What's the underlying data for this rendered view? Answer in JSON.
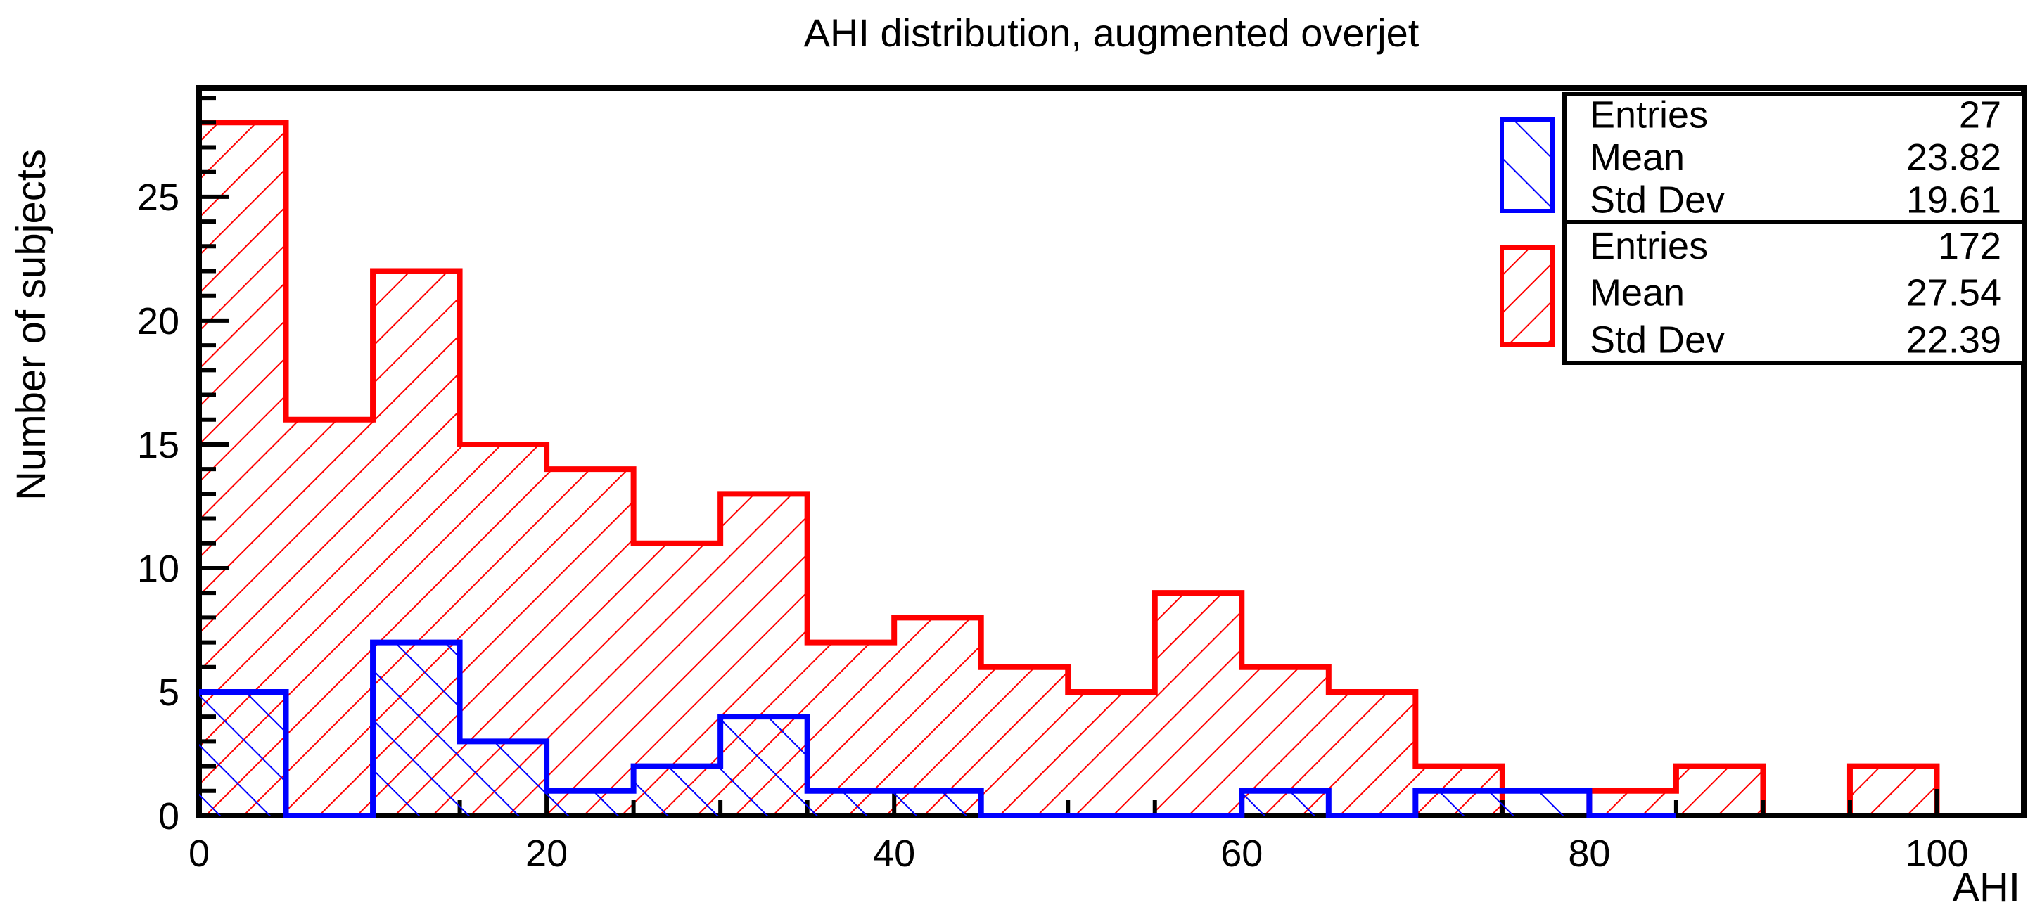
{
  "title": "AHI distribution, augmented overjet",
  "axes": {
    "x_label": "AHI",
    "y_label": "Number of subjects",
    "x_tick_values": [
      0,
      20,
      40,
      60,
      80,
      100
    ],
    "x_tick_labels": [
      "0",
      "20",
      "40",
      "60",
      "80",
      "100"
    ],
    "x_minor_step": 5,
    "y_tick_values": [
      0,
      5,
      10,
      15,
      20,
      25
    ],
    "y_tick_labels": [
      "0",
      "5",
      "10",
      "15",
      "20",
      "25"
    ],
    "y_minor_step": 1,
    "x_range": [
      0,
      105
    ],
    "y_range": [
      0,
      29.4
    ]
  },
  "colors": {
    "red": "#ff0000",
    "blue": "#0000ff",
    "axis": "#000000",
    "background": "#ffffff"
  },
  "stats_boxes": [
    {
      "series": "blue",
      "color": "#0000ff",
      "hatch": "backslash",
      "rows": [
        {
          "label": "Entries",
          "value": "27"
        },
        {
          "label": "Mean",
          "value": "23.82"
        },
        {
          "label": "Std Dev",
          "value": "19.61"
        }
      ]
    },
    {
      "series": "red",
      "color": "#ff0000",
      "hatch": "slash",
      "rows": [
        {
          "label": "Entries",
          "value": "172"
        },
        {
          "label": "Mean",
          "value": "27.54"
        },
        {
          "label": "Std Dev",
          "value": "22.39"
        }
      ]
    }
  ],
  "chart_data": {
    "type": "histogram",
    "title": "AHI distribution, augmented overjet",
    "xlabel": "AHI",
    "ylabel": "Number of subjects",
    "xlim": [
      0,
      105
    ],
    "ylim": [
      0,
      29.4
    ],
    "grid": false,
    "legend_position": "top-right",
    "bin_width": 5,
    "bin_edges": [
      0,
      5,
      10,
      15,
      20,
      25,
      30,
      35,
      40,
      45,
      50,
      55,
      60,
      65,
      70,
      75,
      80,
      85,
      90,
      95,
      100
    ],
    "series": [
      {
        "name": "red-histogram",
        "color": "#ff0000",
        "hatch": "slash",
        "entries": 172,
        "mean": 27.54,
        "std_dev": 22.39,
        "outline_end_x": 100,
        "values": [
          28,
          16,
          22,
          15,
          14,
          11,
          13,
          7,
          8,
          6,
          5,
          9,
          6,
          5,
          2,
          0,
          1,
          2,
          0,
          2
        ]
      },
      {
        "name": "blue-histogram",
        "color": "#0000ff",
        "hatch": "backslash",
        "entries": 27,
        "mean": 23.82,
        "std_dev": 19.61,
        "outline_end_x": 85,
        "values": [
          5,
          0,
          7,
          3,
          1,
          2,
          4,
          1,
          1,
          0,
          0,
          0,
          1,
          0,
          1,
          1,
          0,
          0,
          0,
          0
        ]
      }
    ]
  }
}
